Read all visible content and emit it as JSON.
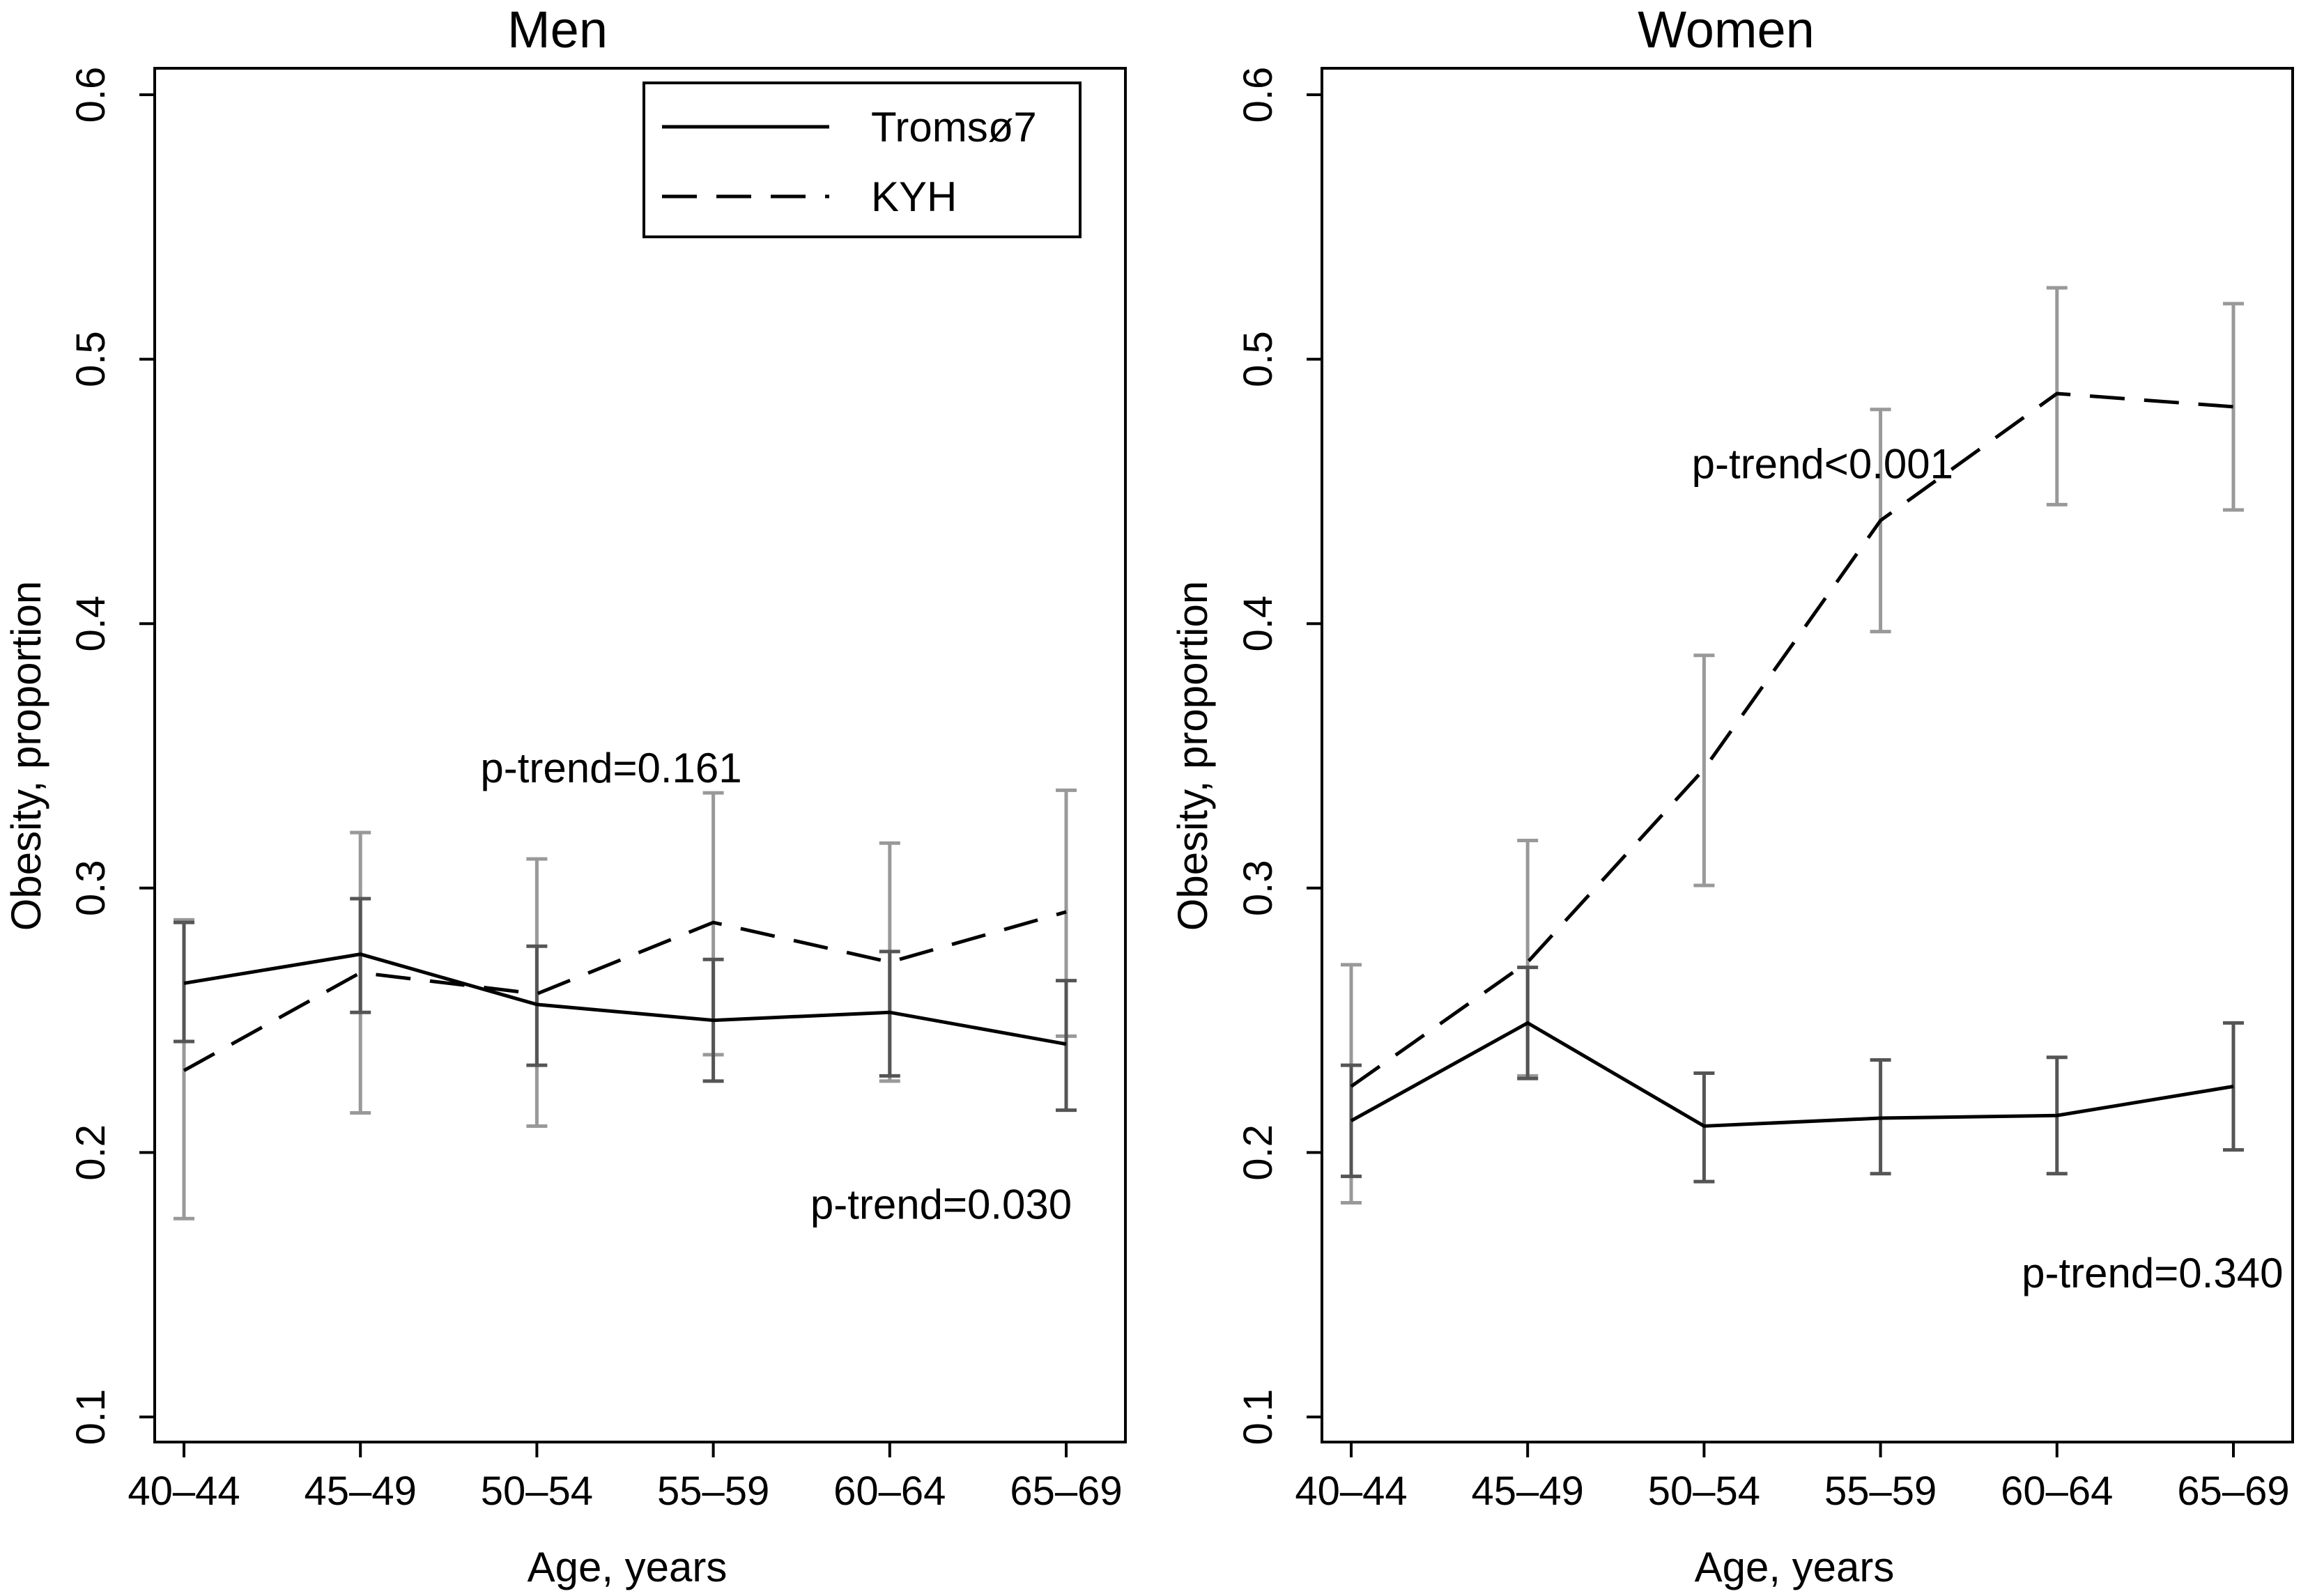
{
  "chart_data": [
    {
      "type": "line",
      "title": "Men",
      "xlabel": "Age, years",
      "ylabel": "Obesity, proportion",
      "categories": [
        "40–44",
        "45–49",
        "50–54",
        "55–59",
        "60–64",
        "65–69"
      ],
      "ylim": [
        0.1,
        0.6
      ],
      "yticks": [
        "0.1",
        "0.2",
        "0.3",
        "0.4",
        "0.5",
        "0.6"
      ],
      "legend": {
        "position": "top-right",
        "entries": [
          {
            "name": "Tromsø7",
            "style": "solid"
          },
          {
            "name": "KYH",
            "style": "dashed"
          }
        ]
      },
      "series": [
        {
          "name": "Tromsø7",
          "style": "solid",
          "color": "#000000",
          "errorbar_color": "#555555",
          "values": [
            0.264,
            0.275,
            0.256,
            0.25,
            0.253,
            0.241
          ],
          "lower": [
            0.242,
            0.253,
            0.233,
            0.227,
            0.229,
            0.216
          ],
          "upper": [
            0.287,
            0.296,
            0.278,
            0.273,
            0.276,
            0.265
          ]
        },
        {
          "name": "KYH",
          "style": "dashed",
          "color": "#000000",
          "errorbar_color": "#999999",
          "values": [
            0.231,
            0.268,
            0.26,
            0.287,
            0.272,
            0.291
          ],
          "lower": [
            0.175,
            0.215,
            0.21,
            0.237,
            0.227,
            0.244
          ],
          "upper": [
            0.288,
            0.321,
            0.311,
            0.336,
            0.317,
            0.337
          ]
        }
      ],
      "annotations": [
        {
          "text": "p-trend=0.161",
          "x": 1.68,
          "y": 0.34
        },
        {
          "text": "p-trend=0.030",
          "x": 3.55,
          "y": 0.175
        }
      ]
    },
    {
      "type": "line",
      "title": "Women",
      "xlabel": "Age, years",
      "ylabel": "Obesity, proportion",
      "categories": [
        "40–44",
        "45–49",
        "50–54",
        "55–59",
        "60–64",
        "65–69"
      ],
      "ylim": [
        0.1,
        0.6
      ],
      "yticks": [
        "0.1",
        "0.2",
        "0.3",
        "0.4",
        "0.5",
        "0.6"
      ],
      "series": [
        {
          "name": "Tromsø7",
          "style": "solid",
          "color": "#000000",
          "errorbar_color": "#555555",
          "values": [
            0.212,
            0.249,
            0.21,
            0.213,
            0.214,
            0.225
          ],
          "lower": [
            0.191,
            0.228,
            0.189,
            0.192,
            0.192,
            0.201
          ],
          "upper": [
            0.233,
            0.27,
            0.23,
            0.235,
            0.236,
            0.249
          ]
        },
        {
          "name": "KYH",
          "style": "dashed",
          "color": "#000000",
          "errorbar_color": "#999999",
          "values": [
            0.225,
            0.272,
            0.345,
            0.439,
            0.487,
            0.482
          ],
          "lower": [
            0.181,
            0.229,
            0.301,
            0.397,
            0.445,
            0.443
          ],
          "upper": [
            0.271,
            0.318,
            0.388,
            0.481,
            0.527,
            0.521
          ]
        }
      ],
      "annotations": [
        {
          "text": "p-trend<0.001",
          "x": 1.93,
          "y": 0.455
        },
        {
          "text": "p-trend=0.340",
          "x": 3.8,
          "y": 0.149
        }
      ]
    }
  ]
}
